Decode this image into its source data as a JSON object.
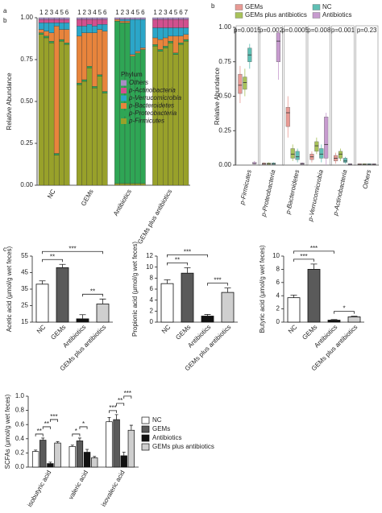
{
  "chart_data": [
    {
      "type": "stacked_bar",
      "panel_label": "a",
      "y_label": "Relative Abundance",
      "ylim": [
        0,
        1
      ],
      "yticks": [
        {
          "value": 0,
          "label": "0.00"
        },
        {
          "value": 0.25,
          "label": "0.25"
        },
        {
          "value": 0.5,
          "label": "0.50"
        },
        {
          "value": 0.75,
          "label": "0.75"
        },
        {
          "value": 1,
          "label": "1.00"
        }
      ],
      "groups": [
        {
          "name": "NC",
          "categories": [
            "1",
            "2",
            "3",
            "4",
            "5",
            "6"
          ]
        },
        {
          "name": "GEMs",
          "categories": [
            "1",
            "2",
            "3",
            "4",
            "5",
            "6"
          ]
        },
        {
          "name": "Antibiotics",
          "categories": [
            "1",
            "2",
            "3",
            "4",
            "5",
            "6"
          ]
        },
        {
          "name": "GEMs plus antibiotics",
          "categories": [
            "1",
            "2",
            "3",
            "4",
            "5",
            "6",
            "7"
          ]
        }
      ],
      "legend_title": "Phylum",
      "series": [
        {
          "name": "p-Firmicutes",
          "color": "#98a12a",
          "values": [
            0.9,
            0.88,
            0.85,
            0.18,
            0.86,
            0.84,
            0.6,
            0.62,
            0.7,
            0.58,
            0.65,
            0.55,
            0.01,
            0.01,
            0.01,
            0.01,
            0.01,
            0.01,
            0.83,
            0.8,
            0.82,
            0.85,
            0.78,
            0.84,
            0.86
          ]
        },
        {
          "name": "p-Proteobacteria",
          "color": "#2fa655",
          "values": [
            0.01,
            0.01,
            0.01,
            0.01,
            0.01,
            0.01,
            0.01,
            0.01,
            0.01,
            0.01,
            0.01,
            0.01,
            0.97,
            0.96,
            0.96,
            0.76,
            0.78,
            0.8,
            0.01,
            0.01,
            0.01,
            0.01,
            0.01,
            0.01,
            0.01
          ]
        },
        {
          "name": "p-Bacteroidetes",
          "color": "#e8843c",
          "values": [
            0.02,
            0.03,
            0.05,
            0.76,
            0.06,
            0.08,
            0.28,
            0.28,
            0.2,
            0.32,
            0.27,
            0.36,
            0.01,
            0.01,
            0.01,
            0.01,
            0.01,
            0.01,
            0.04,
            0.06,
            0.05,
            0.03,
            0.1,
            0.04,
            0.03
          ]
        },
        {
          "name": "p-Verrucomicrobia",
          "color": "#2ba6c8",
          "values": [
            0.04,
            0.05,
            0.06,
            0.02,
            0.04,
            0.04,
            0.06,
            0.04,
            0.05,
            0.04,
            0.03,
            0.04,
            0,
            0.01,
            0.01,
            0.21,
            0.19,
            0.17,
            0.06,
            0.07,
            0.06,
            0.05,
            0.05,
            0.05,
            0.04
          ]
        },
        {
          "name": "p-Actinobacteria",
          "color": "#d2508e",
          "values": [
            0.02,
            0.02,
            0.02,
            0.02,
            0.02,
            0.02,
            0.04,
            0.04,
            0.03,
            0.04,
            0.03,
            0.03,
            0,
            0,
            0,
            0,
            0,
            0,
            0.05,
            0.05,
            0.05,
            0.05,
            0.05,
            0.05,
            0.05
          ]
        },
        {
          "name": "Others",
          "color": "#a98cc4",
          "values": [
            0.01,
            0.01,
            0.01,
            0.01,
            0.01,
            0.01,
            0.01,
            0.01,
            0.01,
            0.01,
            0.01,
            0.01,
            0.01,
            0.01,
            0.01,
            0.01,
            0.01,
            0.01,
            0.01,
            0.01,
            0.01,
            0.01,
            0.01,
            0.01,
            0.01
          ]
        }
      ]
    },
    {
      "type": "box",
      "panel_label": "b",
      "y_label": "Relative Abundance",
      "ylim": [
        0,
        1
      ],
      "yticks": [
        {
          "value": 0,
          "label": "0.00"
        },
        {
          "value": 0.25,
          "label": "0.25"
        },
        {
          "value": 0.5,
          "label": "0.50"
        },
        {
          "value": 0.75,
          "label": "0.75"
        },
        {
          "value": 1,
          "label": "1.00"
        }
      ],
      "categories": [
        "p-Firmicutes",
        "p-Proteobacteria",
        "p-Bacteroidetes",
        "p-Verrucomicrobia",
        "p-Actinobacteria",
        "Others"
      ],
      "p_values": [
        "p=0.0015",
        "p=0.002",
        "p=0.0005",
        "p=0.008",
        "p=0.001",
        "p=0.23"
      ],
      "series": [
        {
          "name": "GEMs",
          "color": "#e89a94",
          "boxes": [
            [
              0.45,
              0.52,
              0.58,
              0.66,
              0.72
            ],
            [
              0,
              0.005,
              0.01,
              0.015,
              0.02
            ],
            [
              0.2,
              0.28,
              0.38,
              0.42,
              0.5
            ],
            [
              0.02,
              0.04,
              0.06,
              0.08,
              0.1
            ],
            [
              0.01,
              0.03,
              0.05,
              0.07,
              0.09
            ],
            [
              0,
              0.002,
              0.005,
              0.01,
              0.012
            ]
          ]
        },
        {
          "name": "GEMs plus antibiotics",
          "color": "#a8c25a",
          "boxes": [
            [
              0.5,
              0.55,
              0.6,
              0.64,
              0.7
            ],
            [
              0,
              0.005,
              0.01,
              0.015,
              0.02
            ],
            [
              0.03,
              0.05,
              0.08,
              0.12,
              0.15
            ],
            [
              0.08,
              0.1,
              0.14,
              0.17,
              0.2
            ],
            [
              0.03,
              0.05,
              0.08,
              0.1,
              0.12
            ],
            [
              0,
              0.002,
              0.005,
              0.01,
              0.012
            ]
          ]
        },
        {
          "name": "NC",
          "color": "#5fbfb4",
          "boxes": [
            [
              0.7,
              0.75,
              0.8,
              0.85,
              0.88
            ],
            [
              0,
              0.005,
              0.01,
              0.015,
              0.02
            ],
            [
              0.02,
              0.04,
              0.06,
              0.1,
              0.12
            ],
            [
              0.02,
              0.05,
              0.08,
              0.12,
              0.15
            ],
            [
              0.01,
              0.02,
              0.03,
              0.05,
              0.06
            ],
            [
              0,
              0.002,
              0.005,
              0.01,
              0.012
            ]
          ]
        },
        {
          "name": "Antibiotics",
          "color": "#c79bcf",
          "boxes": [
            [
              0,
              0.01,
              0.01,
              0.02,
              0.03
            ],
            [
              0.62,
              0.75,
              0.9,
              0.96,
              0.98
            ],
            [
              0,
              0.005,
              0.01,
              0.015,
              0.02
            ],
            [
              0,
              0.05,
              0.15,
              0.35,
              0.38
            ],
            [
              0,
              0,
              0.005,
              0.01,
              0.01
            ],
            [
              0,
              0.002,
              0.005,
              0.01,
              0.012
            ]
          ]
        }
      ]
    },
    {
      "type": "bar_error",
      "panel_label": "c",
      "y_label": "Acetic acid (μmol/g wet feces)",
      "ylim": [
        15,
        55
      ],
      "yticks": [
        15,
        25,
        35,
        45,
        55
      ],
      "categories": [
        "NC",
        "GEMs",
        "Antibiotics",
        "GEMs plus antibiotics"
      ],
      "values": [
        38,
        48,
        17,
        26
      ],
      "errors": [
        2,
        2,
        2.5,
        3
      ],
      "colors": [
        "#ffffff",
        "#5a5a5a",
        "#111111",
        "#cfcfcf"
      ],
      "significance": [
        {
          "between": [
            "NC",
            "GEMs"
          ],
          "label": "**"
        },
        {
          "between": [
            "Antibiotics",
            "GEMs plus antibiotics"
          ],
          "label": "**"
        },
        {
          "between": [
            "NC",
            "GEMs plus antibiotics"
          ],
          "label": "***"
        }
      ]
    },
    {
      "type": "bar_error",
      "y_label": "Propionic acid (μmol/g wet feces)",
      "ylim": [
        0,
        12
      ],
      "yticks": [
        0,
        2,
        4,
        6,
        8,
        10,
        12
      ],
      "categories": [
        "NC",
        "GEMs",
        "Antibiotics",
        "GEMs plus antibiotics"
      ],
      "values": [
        7,
        8.9,
        1.1,
        5.4
      ],
      "errors": [
        0.7,
        1,
        0.3,
        0.8
      ],
      "colors": [
        "#ffffff",
        "#5a5a5a",
        "#111111",
        "#cfcfcf"
      ],
      "significance": [
        {
          "between": [
            "NC",
            "GEMs"
          ],
          "label": "**"
        },
        {
          "between": [
            "Antibiotics",
            "GEMs plus antibiotics"
          ],
          "label": "***"
        },
        {
          "between": [
            "NC",
            "Antibiotics"
          ],
          "label": "***"
        }
      ]
    },
    {
      "type": "bar_error",
      "y_label": "Butyric acid (μmol/g wet feces)",
      "ylim": [
        0,
        10
      ],
      "yticks": [
        0,
        2,
        4,
        6,
        8,
        10
      ],
      "categories": [
        "NC",
        "GEMs",
        "Antibiotics",
        "GEMs plus antibiotics"
      ],
      "values": [
        3.7,
        8,
        0.3,
        0.8
      ],
      "errors": [
        0.4,
        0.8,
        0.1,
        0.1
      ],
      "colors": [
        "#ffffff",
        "#5a5a5a",
        "#111111",
        "#cfcfcf"
      ],
      "significance": [
        {
          "between": [
            "NC",
            "GEMs"
          ],
          "label": "***"
        },
        {
          "between": [
            "Antibiotics",
            "GEMs plus antibiotics"
          ],
          "label": "*"
        },
        {
          "between": [
            "NC",
            "Antibiotics"
          ],
          "label": "***"
        }
      ]
    },
    {
      "type": "grouped_bar_error",
      "y_label": "SCFAs (μmol/g wet feces)",
      "ylim": [
        0,
        1
      ],
      "yticks": [
        {
          "value": 0,
          "label": "0.0"
        },
        0.2,
        0.4,
        0.6,
        0.8,
        {
          "value": 1,
          "label": "1.0"
        }
      ],
      "categories": [
        "isobutyric acid",
        "valeric acid",
        "isovaleric acid"
      ],
      "series": [
        {
          "name": "NC",
          "color": "#ffffff",
          "values": [
            0.22,
            0.29,
            0.64
          ],
          "errors": [
            0.02,
            0.02,
            0.06
          ]
        },
        {
          "name": "GEMs",
          "color": "#5a5a5a",
          "values": [
            0.38,
            0.37,
            0.67
          ],
          "errors": [
            0.03,
            0.04,
            0.07
          ]
        },
        {
          "name": "Antibiotics",
          "color": "#111111",
          "values": [
            0.05,
            0.21,
            0.16
          ],
          "errors": [
            0.02,
            0.04,
            0.05
          ]
        },
        {
          "name": "GEMs plus  antibiotics",
          "color": "#cfcfcf",
          "values": [
            0.34,
            0.13,
            0.52
          ],
          "errors": [
            0.02,
            0.02,
            0.07
          ]
        }
      ],
      "significance": [
        {
          "category": "isobutyric acid",
          "between": [
            "NC",
            "GEMs"
          ],
          "label": "**"
        },
        {
          "category": "isobutyric acid",
          "between": [
            "GEMs",
            "Antibiotics"
          ],
          "label": "**"
        },
        {
          "category": "isobutyric acid",
          "between": [
            "Antibiotics",
            "GEMs plus  antibiotics"
          ],
          "label": "***"
        },
        {
          "category": "valeric acid",
          "between": [
            "NC",
            "GEMs"
          ],
          "label": "*"
        },
        {
          "category": "valeric acid",
          "between": [
            "GEMs",
            "Antibiotics"
          ],
          "label": "*"
        },
        {
          "category": "isovaleric acid",
          "between": [
            "NC",
            "GEMs"
          ],
          "label": "***"
        },
        {
          "category": "isovaleric acid",
          "between": [
            "GEMs",
            "Antibiotics"
          ],
          "label": "**"
        },
        {
          "category": "isovaleric acid",
          "between": [
            "Antibiotics",
            "GEMs plus  antibiotics"
          ],
          "label": "***"
        }
      ]
    }
  ]
}
